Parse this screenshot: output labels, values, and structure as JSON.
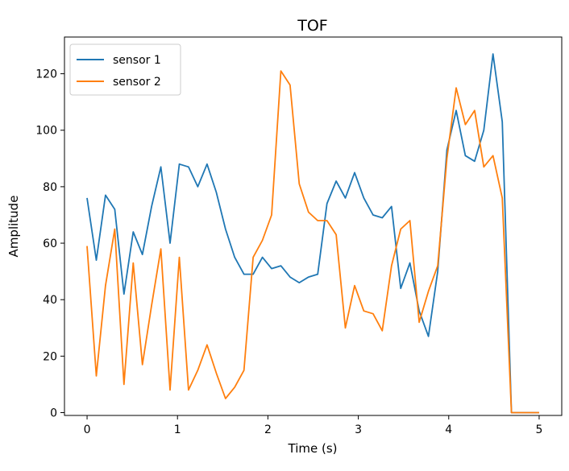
{
  "chart_data": {
    "type": "line",
    "title": "TOF",
    "xlabel": "Time (s)",
    "ylabel": "Amplitude",
    "xlim": [
      -0.25,
      5.25
    ],
    "ylim": [
      -1,
      133
    ],
    "x_ticks": [
      0,
      1,
      2,
      3,
      4,
      5
    ],
    "y_ticks": [
      0,
      20,
      40,
      60,
      80,
      100,
      120
    ],
    "grid": false,
    "legend_position": "top-left",
    "x": [
      0,
      0.102,
      0.204,
      0.306,
      0.408,
      0.51,
      0.612,
      0.714,
      0.816,
      0.918,
      1.02,
      1.122,
      1.224,
      1.327,
      1.429,
      1.531,
      1.633,
      1.735,
      1.837,
      1.939,
      2.041,
      2.143,
      2.245,
      2.347,
      2.449,
      2.551,
      2.653,
      2.755,
      2.857,
      2.959,
      3.061,
      3.163,
      3.265,
      3.367,
      3.469,
      3.571,
      3.673,
      3.776,
      3.878,
      3.98,
      4.082,
      4.184,
      4.286,
      4.388,
      4.49,
      4.592,
      4.694,
      4.796,
      4.898,
      5.0
    ],
    "series": [
      {
        "name": "sensor 1",
        "color": "#1f77b4",
        "values": [
          76,
          54,
          77,
          72,
          42,
          64,
          56,
          73,
          87,
          60,
          88,
          87,
          80,
          88,
          78,
          65,
          55,
          49,
          49,
          55,
          51,
          52,
          48,
          46,
          48,
          49,
          74,
          82,
          76,
          85,
          76,
          70,
          69,
          73,
          44,
          53,
          36,
          27,
          50,
          93,
          107,
          91,
          89,
          100,
          127,
          103,
          0,
          0,
          0,
          0
        ]
      },
      {
        "name": "sensor 2",
        "color": "#ff7f0e",
        "values": [
          59,
          13,
          45,
          65,
          10,
          53,
          17,
          38,
          58,
          8,
          55,
          8,
          15,
          24,
          14,
          5,
          9,
          15,
          55,
          61,
          70,
          121,
          116,
          81,
          71,
          68,
          68,
          63,
          30,
          45,
          36,
          35,
          29,
          52,
          65,
          68,
          32,
          43,
          52,
          90,
          115,
          102,
          107,
          87,
          91,
          76,
          0,
          0,
          0,
          0
        ]
      }
    ]
  }
}
